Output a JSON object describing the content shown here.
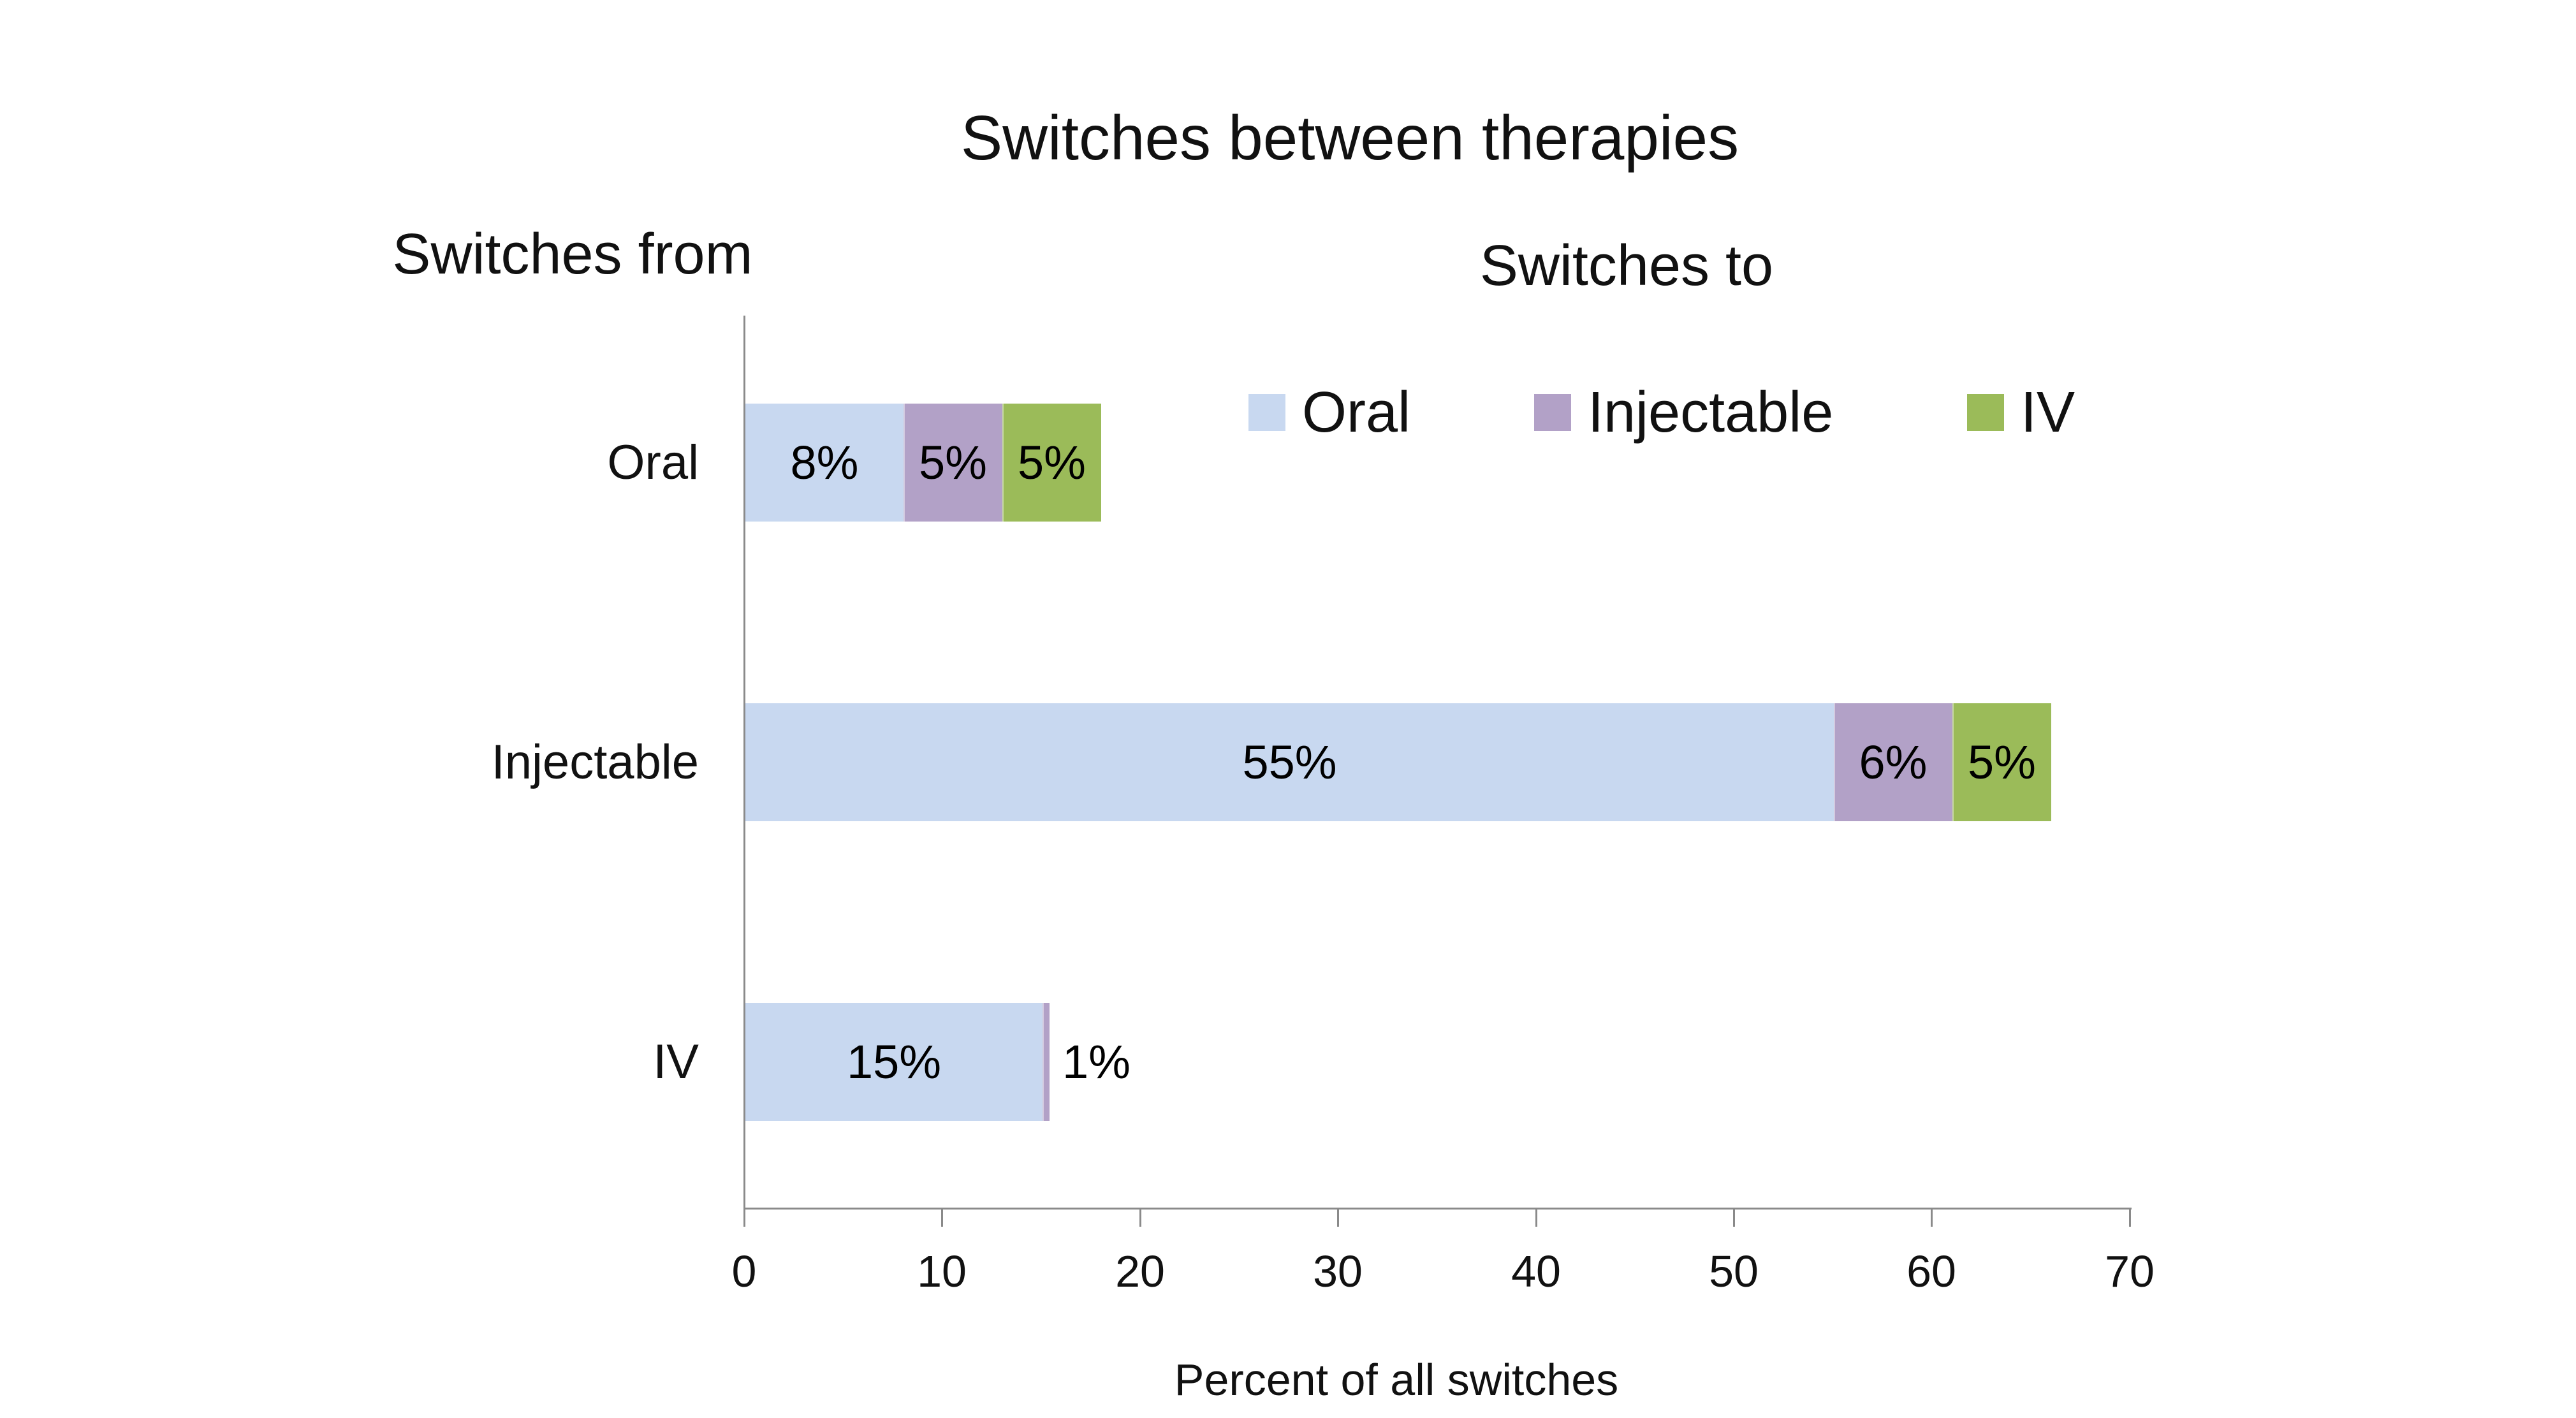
{
  "title": "Switches between therapies",
  "header_from": "Switches from",
  "header_to": "Switches to",
  "chart_data": {
    "type": "bar",
    "orientation": "horizontal",
    "stacked": true,
    "title": "Switches between therapies",
    "xlabel": "Percent of all switches",
    "xlim": [
      0,
      70
    ],
    "xticks": [
      0,
      10,
      20,
      30,
      40,
      50,
      60,
      70
    ],
    "grid": false,
    "legend_position": "top-right-inside",
    "legend_entries": [
      "Oral",
      "Injectable",
      "IV"
    ],
    "series_colors": {
      "Oral": "#C8D8F0",
      "Injectable": "#B2A1C7",
      "IV": "#9BBB59"
    },
    "axis_color": "#8A8A8A",
    "categories": [
      "Oral",
      "Injectable",
      "IV"
    ],
    "series": [
      {
        "name": "Oral",
        "values": [
          8,
          55,
          15
        ]
      },
      {
        "name": "Injectable",
        "values": [
          5,
          6,
          1
        ]
      },
      {
        "name": "IV",
        "values": [
          5,
          5,
          0
        ]
      }
    ],
    "rows": [
      {
        "category": "Oral",
        "segments": [
          {
            "series": "Oral",
            "value": 8,
            "label": "8%"
          },
          {
            "series": "Injectable",
            "value": 5,
            "label": "5%"
          },
          {
            "series": "IV",
            "value": 5,
            "label": "5%"
          }
        ]
      },
      {
        "category": "Injectable",
        "segments": [
          {
            "series": "Oral",
            "value": 55,
            "label": "55%"
          },
          {
            "series": "Injectable",
            "value": 6,
            "label": "6%"
          },
          {
            "series": "IV",
            "value": 5,
            "label": "5%"
          }
        ]
      },
      {
        "category": "IV",
        "segments": [
          {
            "series": "Oral",
            "value": 15,
            "label": "15%"
          },
          {
            "series": "Injectable",
            "value": 1,
            "label": "1%",
            "label_position": "outside",
            "draw_value": 0.35
          }
        ]
      }
    ]
  }
}
